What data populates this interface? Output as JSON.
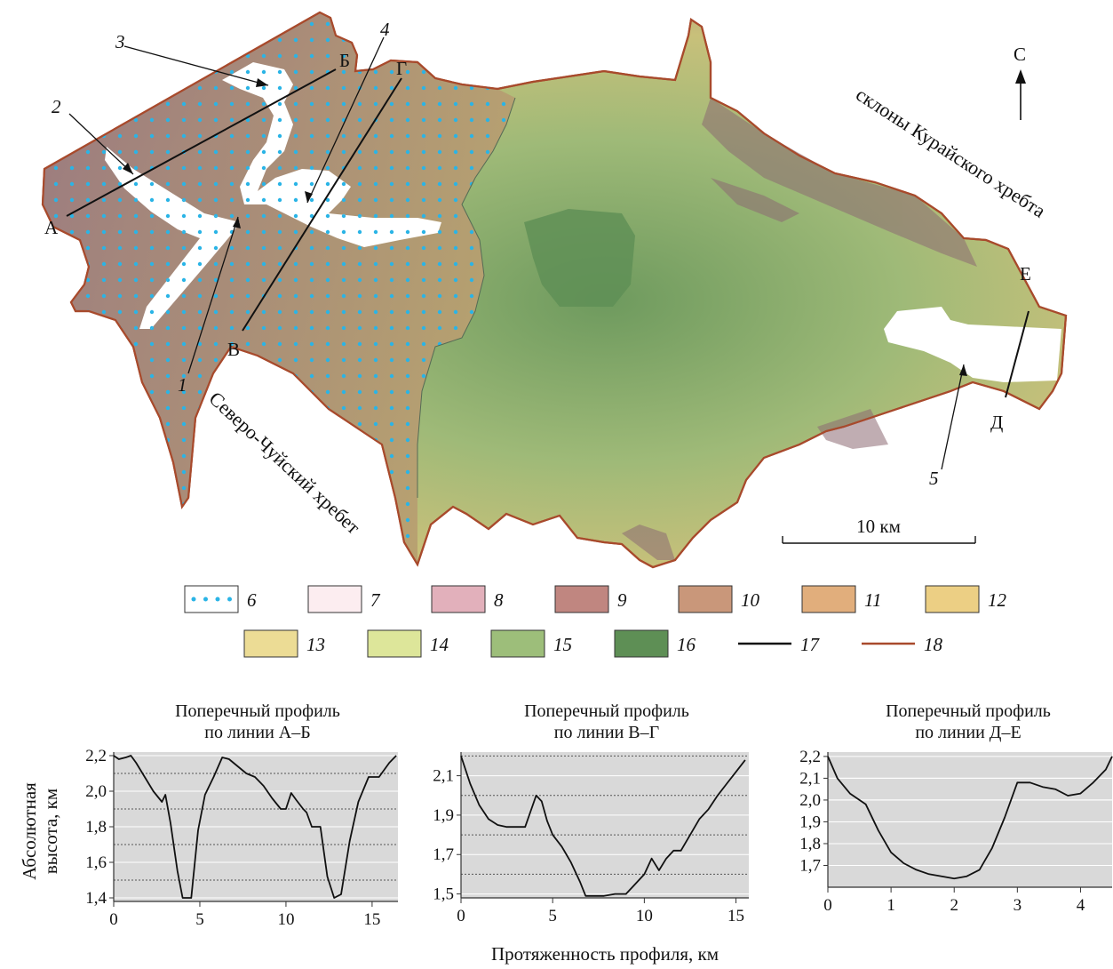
{
  "map": {
    "north_label": "С",
    "scale_label": "10 км",
    "place_labels": [
      "склоны Курайского хребта",
      "Северо-Чуйский хребет"
    ],
    "profile_endpoints": [
      "А",
      "Б",
      "В",
      "Г",
      "Д",
      "Е"
    ],
    "callouts": [
      "1",
      "2",
      "3",
      "4",
      "5"
    ],
    "colors": {
      "boundary": "#a84a2c",
      "lake_dots": "#2ab4e6",
      "elev_high": "#a07a7a",
      "elev_mid": "#c8b070",
      "elev_low": "#6e9a5e",
      "valley_fill": "#8aa86a"
    }
  },
  "legend": {
    "items": [
      {
        "label": "6",
        "kind": "dots",
        "color": "#2ab4e6"
      },
      {
        "label": "7",
        "kind": "fill",
        "color": "#fcedf0"
      },
      {
        "label": "8",
        "kind": "fill",
        "color": "#e2b0bb"
      },
      {
        "label": "9",
        "kind": "fill",
        "color": "#c08680"
      },
      {
        "label": "10",
        "kind": "fill",
        "color": "#c9977a"
      },
      {
        "label": "11",
        "kind": "fill",
        "color": "#e1ae7c"
      },
      {
        "label": "12",
        "kind": "fill",
        "color": "#eccf84"
      },
      {
        "label": "13",
        "kind": "fill",
        "color": "#ecdc95"
      },
      {
        "label": "14",
        "kind": "fill",
        "color": "#dde69a"
      },
      {
        "label": "15",
        "kind": "fill",
        "color": "#9dbe7a"
      },
      {
        "label": "16",
        "kind": "fill",
        "color": "#5e8f55"
      },
      {
        "label": "17",
        "kind": "line",
        "color": "#111111"
      },
      {
        "label": "18",
        "kind": "line",
        "color": "#a84a2c"
      }
    ]
  },
  "profiles": {
    "y_axis_label": [
      "Абсолютная",
      "высота, км"
    ],
    "x_axis_label": "Протяженность профиля, км"
  },
  "chart_data": [
    {
      "type": "line",
      "title": [
        "Поперечный профиль",
        "по линии А–Б"
      ],
      "xlim": [
        0,
        16.5
      ],
      "ylim": [
        1.38,
        2.22
      ],
      "xticks": [
        0,
        5,
        10,
        15
      ],
      "yticks": [
        1.4,
        1.6,
        1.8,
        2.0,
        2.2
      ],
      "ytick_labels": [
        "1,4",
        "1,6",
        "1,8",
        "2,0",
        "2,2"
      ],
      "grid_lines": [
        1.5,
        1.7,
        1.9,
        2.1
      ],
      "series": [
        {
          "x": [
            0,
            0.3,
            0.7,
            1.0,
            1.3,
            1.8,
            2.3,
            2.8,
            3.0,
            3.3,
            3.7,
            4.0,
            4.5,
            4.9,
            5.3,
            5.8,
            6.3,
            6.7,
            7.2,
            7.7,
            8.2,
            8.7,
            9.2,
            9.7,
            10.0,
            10.3,
            10.6,
            11.0,
            11.2,
            11.5,
            11.8,
            12.0,
            12.4,
            12.8,
            13.2,
            13.7,
            14.2,
            14.8,
            15.4,
            16.0,
            16.4
          ],
          "y": [
            2.2,
            2.18,
            2.19,
            2.2,
            2.16,
            2.08,
            2.0,
            1.94,
            1.98,
            1.82,
            1.55,
            1.4,
            1.4,
            1.78,
            1.98,
            2.08,
            2.19,
            2.18,
            2.14,
            2.1,
            2.08,
            2.03,
            1.96,
            1.9,
            1.9,
            1.99,
            1.95,
            1.9,
            1.88,
            1.8,
            1.8,
            1.8,
            1.52,
            1.4,
            1.42,
            1.72,
            1.94,
            2.08,
            2.08,
            2.16,
            2.2
          ]
        }
      ]
    },
    {
      "type": "line",
      "title": [
        "Поперечный профиль",
        "по линии В–Г"
      ],
      "xlim": [
        0,
        15.7
      ],
      "ylim": [
        1.48,
        2.22
      ],
      "xticks": [
        0,
        5,
        10,
        15
      ],
      "yticks": [
        1.5,
        1.7,
        1.9,
        2.1
      ],
      "ytick_labels": [
        "1,5",
        "1,7",
        "1,9",
        "2,1"
      ],
      "grid_lines": [
        1.6,
        1.8,
        2.0,
        2.2
      ],
      "series": [
        {
          "x": [
            0,
            0.5,
            1.0,
            1.5,
            2.0,
            2.5,
            3.0,
            3.5,
            3.8,
            4.1,
            4.4,
            4.7,
            5.0,
            5.5,
            6.0,
            6.5,
            6.8,
            7.2,
            7.8,
            8.4,
            9.0,
            9.5,
            10.0,
            10.4,
            10.8,
            11.2,
            11.6,
            12.0,
            12.5,
            13.0,
            13.5,
            14.0,
            14.5,
            15.0,
            15.5
          ],
          "y": [
            2.2,
            2.06,
            1.95,
            1.88,
            1.85,
            1.84,
            1.84,
            1.84,
            1.92,
            2.0,
            1.97,
            1.87,
            1.8,
            1.74,
            1.66,
            1.56,
            1.49,
            1.49,
            1.49,
            1.5,
            1.5,
            1.55,
            1.6,
            1.68,
            1.62,
            1.68,
            1.72,
            1.72,
            1.8,
            1.88,
            1.93,
            2.0,
            2.06,
            2.12,
            2.18
          ]
        }
      ]
    },
    {
      "type": "line",
      "title": [
        "Поперечный профиль",
        "по линии Д–Е"
      ],
      "xlim": [
        0,
        4.5
      ],
      "ylim": [
        1.6,
        2.22
      ],
      "xticks": [
        0,
        1,
        2,
        3,
        4
      ],
      "yticks": [
        1.7,
        1.8,
        1.9,
        2.0,
        2.1,
        2.2
      ],
      "ytick_labels": [
        "1,7",
        "1,8",
        "1,9",
        "2,0",
        "2,1",
        "2,2"
      ],
      "grid_lines": [
        1.7,
        1.8,
        1.9,
        2.0,
        2.1
      ],
      "series": [
        {
          "x": [
            0,
            0.15,
            0.35,
            0.6,
            0.8,
            1.0,
            1.2,
            1.4,
            1.6,
            1.8,
            2.0,
            2.2,
            2.4,
            2.6,
            2.8,
            3.0,
            3.2,
            3.4,
            3.6,
            3.8,
            4.0,
            4.2,
            4.4,
            4.5
          ],
          "y": [
            2.2,
            2.1,
            2.03,
            1.98,
            1.86,
            1.76,
            1.71,
            1.68,
            1.66,
            1.65,
            1.64,
            1.65,
            1.68,
            1.78,
            1.92,
            2.08,
            2.08,
            2.06,
            2.05,
            2.02,
            2.03,
            2.08,
            2.14,
            2.2
          ]
        }
      ]
    }
  ]
}
